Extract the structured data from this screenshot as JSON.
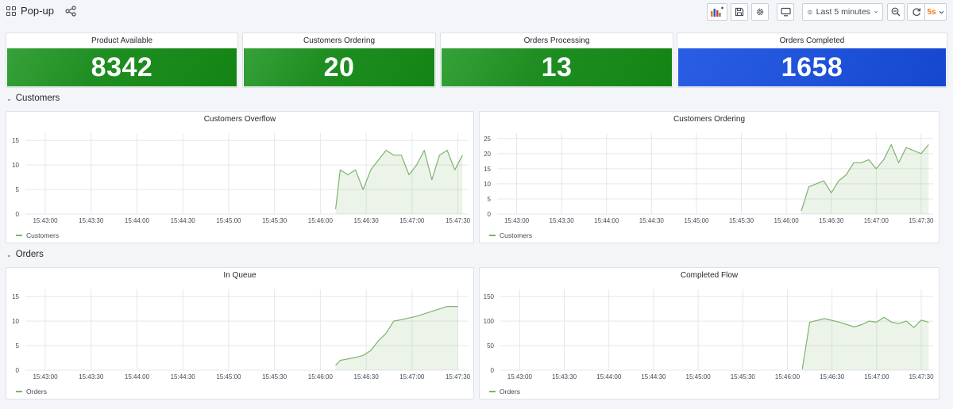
{
  "dashboard": {
    "title": "Pop-up"
  },
  "toolbar": {
    "time_range": "Last 5 minutes",
    "refresh_interval": "5s"
  },
  "stats": [
    {
      "title": "Product Available",
      "value": "8342",
      "color": "#1f8e22"
    },
    {
      "title": "Customers Ordering",
      "value": "20",
      "color": "#1f8e22"
    },
    {
      "title": "Orders Processing",
      "value": "13",
      "color": "#1f8e22"
    },
    {
      "title": "Orders Completed",
      "value": "1658",
      "color": "#1f53da"
    }
  ],
  "rows": [
    {
      "title": "Customers"
    },
    {
      "title": "Orders"
    }
  ],
  "panels": [
    {
      "title": "Customers Overflow",
      "legend": "Customers"
    },
    {
      "title": "Customers Ordering",
      "legend": "Customers"
    },
    {
      "title": "In Queue",
      "legend": "Orders"
    },
    {
      "title": "Completed Flow",
      "legend": "Orders"
    }
  ],
  "chart_data": [
    {
      "type": "area",
      "title": "Customers Overflow",
      "series": [
        {
          "name": "Customers",
          "color": "#7eb26d",
          "x": [
            "15:46:10",
            "15:46:13",
            "15:46:18",
            "15:46:23",
            "15:46:28",
            "15:46:33",
            "15:46:43",
            "15:46:48",
            "15:46:53",
            "15:46:58",
            "15:47:03",
            "15:47:08",
            "15:47:13",
            "15:47:18",
            "15:47:23",
            "15:47:28",
            "15:47:33"
          ],
          "y": [
            1,
            9,
            8,
            9,
            5,
            9,
            13,
            12,
            12,
            8,
            10,
            13,
            7,
            12,
            13,
            9,
            12
          ]
        }
      ],
      "x_ticks": [
        "15:43:00",
        "15:43:30",
        "15:44:00",
        "15:44:30",
        "15:45:00",
        "15:45:30",
        "15:46:00",
        "15:46:30",
        "15:47:00",
        "15:47:30"
      ],
      "y_ticks": [
        0,
        5,
        10,
        15
      ],
      "ylim": [
        0,
        16
      ]
    },
    {
      "type": "area",
      "title": "Customers Ordering",
      "series": [
        {
          "name": "Customers",
          "color": "#7eb26d",
          "x": [
            "15:46:10",
            "15:46:15",
            "15:46:20",
            "15:46:25",
            "15:46:30",
            "15:46:35",
            "15:46:40",
            "15:46:45",
            "15:46:50",
            "15:46:55",
            "15:47:00",
            "15:47:05",
            "15:47:10",
            "15:47:15",
            "15:47:20",
            "15:47:25",
            "15:47:30",
            "15:47:35"
          ],
          "y": [
            1,
            9,
            10,
            11,
            7,
            11,
            13,
            17,
            17,
            18,
            15,
            18,
            23,
            17,
            22,
            21,
            20,
            23
          ]
        }
      ],
      "x_ticks": [
        "15:43:00",
        "15:43:30",
        "15:44:00",
        "15:44:30",
        "15:45:00",
        "15:45:30",
        "15:46:00",
        "15:46:30",
        "15:47:00",
        "15:47:30"
      ],
      "y_ticks": [
        0,
        5,
        10,
        15,
        20,
        25
      ],
      "ylim": [
        0,
        26
      ]
    },
    {
      "type": "area",
      "title": "In Queue",
      "series": [
        {
          "name": "Orders",
          "color": "#7eb26d",
          "x": [
            "15:46:10",
            "15:46:13",
            "15:46:18",
            "15:46:23",
            "15:46:28",
            "15:46:33",
            "15:46:38",
            "15:46:43",
            "15:46:48",
            "15:46:53",
            "15:47:03",
            "15:47:13",
            "15:47:23",
            "15:47:30"
          ],
          "y": [
            1,
            2,
            2.3,
            2.6,
            3,
            4,
            6,
            7.5,
            10,
            10.3,
            11,
            12,
            13,
            13
          ]
        }
      ],
      "x_ticks": [
        "15:43:00",
        "15:43:30",
        "15:44:00",
        "15:44:30",
        "15:45:00",
        "15:45:30",
        "15:46:00",
        "15:46:30",
        "15:47:00",
        "15:47:30"
      ],
      "y_ticks": [
        0,
        5,
        10,
        15
      ],
      "ylim": [
        0,
        16
      ]
    },
    {
      "type": "area",
      "title": "Completed Flow",
      "series": [
        {
          "name": "Orders",
          "color": "#7eb26d",
          "x": [
            "15:46:10",
            "15:46:15",
            "15:46:25",
            "15:46:35",
            "15:46:45",
            "15:46:50",
            "15:46:55",
            "15:47:00",
            "15:47:05",
            "15:47:10",
            "15:47:15",
            "15:47:20",
            "15:47:25",
            "15:47:30",
            "15:47:35"
          ],
          "y": [
            2,
            98,
            105,
            98,
            88,
            93,
            100,
            98,
            108,
            98,
            95,
            100,
            87,
            102,
            98
          ]
        }
      ],
      "x_ticks": [
        "15:43:00",
        "15:43:30",
        "15:44:00",
        "15:44:30",
        "15:45:00",
        "15:45:30",
        "15:46:00",
        "15:46:30",
        "15:47:00",
        "15:47:30"
      ],
      "y_ticks": [
        0,
        50,
        100,
        150
      ],
      "ylim": [
        0,
        160
      ]
    }
  ],
  "icons": [
    "grid-icon",
    "share-icon",
    "add-panel-icon",
    "save-icon",
    "gear-icon",
    "tv-icon",
    "clock-icon",
    "chevron-down-icon",
    "zoom-out-icon",
    "refresh-icon"
  ]
}
